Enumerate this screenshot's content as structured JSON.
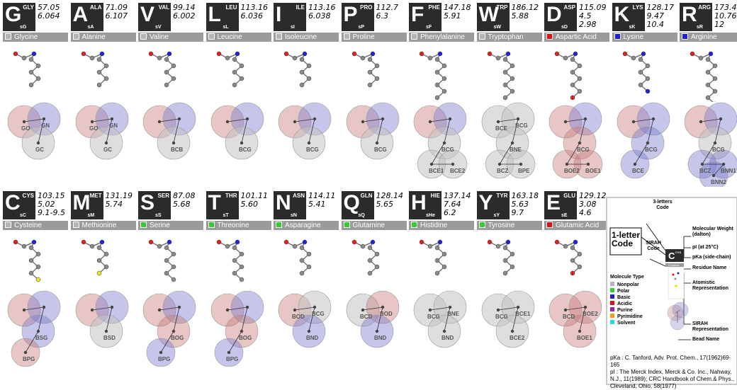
{
  "colors": {
    "Nonpolar": "#b4b4b4",
    "Polar": "#33cc33",
    "Basic": "#1f1fd6",
    "Acidic": "#dd1111",
    "Purine": "#9922aa",
    "Pyrimidine": "#e8a020",
    "Solvent": "#22dddd"
  },
  "residues": [
    {
      "letter": "G",
      "code3": "GLY",
      "sirah": "sG",
      "weight": "57.05",
      "pI": "6.064",
      "pKa": "",
      "name": "Glycine",
      "type": "Nonpolar",
      "beads": [
        {
          "label": "GO",
          "color": "red"
        },
        {
          "label": "GN",
          "color": "blue"
        },
        {
          "label": "GC",
          "color": "gray"
        }
      ]
    },
    {
      "letter": "A",
      "code3": "ALA",
      "sirah": "sA",
      "weight": "71.09",
      "pI": "6.107",
      "pKa": "",
      "name": "Alanine",
      "type": "Nonpolar",
      "beads": [
        {
          "label": "GO",
          "color": "red"
        },
        {
          "label": "GN",
          "color": "blue"
        },
        {
          "label": "GC",
          "color": "gray"
        }
      ]
    },
    {
      "letter": "V",
      "code3": "VAL",
      "sirah": "sV",
      "weight": "99.14",
      "pI": "6.002",
      "pKa": "",
      "name": "Valine",
      "type": "Nonpolar",
      "beads": [
        {
          "label": "",
          "color": "red"
        },
        {
          "label": "",
          "color": "blue"
        },
        {
          "label": "BCB",
          "color": "gray"
        }
      ]
    },
    {
      "letter": "L",
      "code3": "LEU",
      "sirah": "sL",
      "weight": "113.16",
      "pI": "6.036",
      "pKa": "",
      "name": "Leucine",
      "type": "Nonpolar",
      "beads": [
        {
          "label": "",
          "color": "red"
        },
        {
          "label": "",
          "color": "blue"
        },
        {
          "label": "BCG",
          "color": "gray"
        }
      ]
    },
    {
      "letter": "I",
      "code3": "ILE",
      "sirah": "sI",
      "weight": "113.16",
      "pI": "6.038",
      "pKa": "",
      "name": "Isoleucine",
      "type": "Nonpolar",
      "beads": [
        {
          "label": "",
          "color": "red"
        },
        {
          "label": "",
          "color": "blue"
        },
        {
          "label": "BCG",
          "color": "gray"
        }
      ]
    },
    {
      "letter": "P",
      "code3": "PRO",
      "sirah": "sP",
      "weight": "112.7",
      "pI": "6.3",
      "pKa": "",
      "name": "Proline",
      "type": "Nonpolar",
      "beads": [
        {
          "label": "",
          "color": "red"
        },
        {
          "label": "",
          "color": "blue"
        },
        {
          "label": "BCG",
          "color": "gray"
        }
      ]
    },
    {
      "letter": "F",
      "code3": "PHE",
      "sirah": "sF",
      "weight": "147.18",
      "pI": "5.91",
      "pKa": "",
      "name": "Phenylalanine",
      "type": "Nonpolar",
      "beads": [
        {
          "label": "",
          "color": "red"
        },
        {
          "label": "",
          "color": "blue"
        },
        {
          "label": "BCG",
          "color": "gray"
        },
        {
          "label": "BCE1",
          "color": "gray"
        },
        {
          "label": "BCE2",
          "color": "gray"
        }
      ]
    },
    {
      "letter": "W",
      "code3": "TRP",
      "sirah": "sW",
      "weight": "186.12",
      "pI": "5.88",
      "pKa": "",
      "name": "Tryptophan",
      "type": "Nonpolar",
      "beads": [
        {
          "label": "BCE",
          "color": "gray"
        },
        {
          "label": "BCG",
          "color": "gray"
        },
        {
          "label": "BNE",
          "color": "gray"
        },
        {
          "label": "BCZ",
          "color": "gray"
        },
        {
          "label": "BPE",
          "color": "gray"
        }
      ]
    },
    {
      "letter": "D",
      "code3": "ASP",
      "sirah": "sD",
      "weight": "115.09",
      "pI": "4.5",
      "pKa": "2.98",
      "name": "Aspartic Acid",
      "type": "Acidic",
      "beads": [
        {
          "label": "",
          "color": "red"
        },
        {
          "label": "",
          "color": "blue"
        },
        {
          "label": "BCG",
          "color": "red"
        },
        {
          "label": "BOE2",
          "color": "red"
        },
        {
          "label": "BOE1",
          "color": "red"
        }
      ]
    },
    {
      "letter": "K",
      "code3": "LYS",
      "sirah": "sK",
      "weight": "128.17",
      "pI": "9.47",
      "pKa": "10.4",
      "name": "Lysine",
      "type": "Basic",
      "beads": [
        {
          "label": "",
          "color": "red"
        },
        {
          "label": "",
          "color": "blue"
        },
        {
          "label": "BCG",
          "color": "blue"
        },
        {
          "label": "BCE",
          "color": "blue"
        }
      ]
    },
    {
      "letter": "R",
      "code3": "ARG",
      "sirah": "sR",
      "weight": "173.4",
      "pI": "10.76",
      "pKa": "12",
      "name": "Arginine",
      "type": "Basic",
      "beads": [
        {
          "label": "",
          "color": "red"
        },
        {
          "label": "",
          "color": "blue"
        },
        {
          "label": "BCG",
          "color": "gray"
        },
        {
          "label": "BCZ",
          "color": "blue"
        },
        {
          "label": "BNN1",
          "color": "blue"
        },
        {
          "label": "BNN2",
          "color": "blue"
        }
      ]
    },
    {
      "letter": "C",
      "code3": "CYS",
      "sirah": "sC",
      "weight": "103.15",
      "pI": "5.02",
      "pKa": "9.1-9.5",
      "name": "Cysteine",
      "type": "Nonpolar",
      "beads": [
        {
          "label": "",
          "color": "red"
        },
        {
          "label": "",
          "color": "blue"
        },
        {
          "label": "BSG",
          "color": "blue"
        },
        {
          "label": "BPG",
          "color": "red"
        }
      ]
    },
    {
      "letter": "M",
      "code3": "MET",
      "sirah": "sM",
      "weight": "131.19",
      "pI": "5.74",
      "pKa": "",
      "name": "Methionine",
      "type": "Nonpolar",
      "beads": [
        {
          "label": "",
          "color": "red"
        },
        {
          "label": "",
          "color": "blue"
        },
        {
          "label": "BSD",
          "color": "gray"
        }
      ]
    },
    {
      "letter": "S",
      "code3": "SER",
      "sirah": "sS",
      "weight": "87.08",
      "pI": "5.68",
      "pKa": "",
      "name": "Serine",
      "type": "Polar",
      "beads": [
        {
          "label": "",
          "color": "red"
        },
        {
          "label": "",
          "color": "blue"
        },
        {
          "label": "BOG",
          "color": "red"
        },
        {
          "label": "BPG",
          "color": "blue"
        }
      ]
    },
    {
      "letter": "T",
      "code3": "THR",
      "sirah": "sT",
      "weight": "101.11",
      "pI": "5.60",
      "pKa": "",
      "name": "Threonine",
      "type": "Polar",
      "beads": [
        {
          "label": "",
          "color": "red"
        },
        {
          "label": "",
          "color": "blue"
        },
        {
          "label": "BOG",
          "color": "red"
        },
        {
          "label": "BPG",
          "color": "blue"
        }
      ]
    },
    {
      "letter": "N",
      "code3": "ASN",
      "sirah": "sN",
      "weight": "114.11",
      "pI": "5.41",
      "pKa": "",
      "name": "Asparagine",
      "type": "Polar",
      "beads": [
        {
          "label": "BOD",
          "color": "red"
        },
        {
          "label": "BCG",
          "color": "gray"
        },
        {
          "label": "BND",
          "color": "blue"
        }
      ]
    },
    {
      "letter": "Q",
      "code3": "GLN",
      "sirah": "sQ",
      "weight": "128.14",
      "pI": "5.65",
      "pKa": "",
      "name": "Glutamine",
      "type": "Polar",
      "beads": [
        {
          "label": "BCD",
          "color": "gray"
        },
        {
          "label": "BOD",
          "color": "red"
        },
        {
          "label": "BND",
          "color": "blue"
        }
      ]
    },
    {
      "letter": "H",
      "code3": "HIE",
      "sirah": "sHe",
      "weight": "137.14",
      "pI": "7.64",
      "pKa": "6.2",
      "name": "Histidine",
      "type": "Polar",
      "beads": [
        {
          "label": "BCG",
          "color": "gray"
        },
        {
          "label": "BNE",
          "color": "gray"
        },
        {
          "label": "BND",
          "color": "gray"
        }
      ]
    },
    {
      "letter": "Y",
      "code3": "TYR",
      "sirah": "sY",
      "weight": "163.18",
      "pI": "5.63",
      "pKa": "9.7",
      "name": "Tyrosine",
      "type": "Polar",
      "beads": [
        {
          "label": "BCG",
          "color": "gray"
        },
        {
          "label": "BCE1",
          "color": "gray"
        },
        {
          "label": "BCE2",
          "color": "gray"
        }
      ]
    },
    {
      "letter": "E",
      "code3": "GLU",
      "sirah": "sE",
      "weight": "129.12",
      "pI": "3.08",
      "pKa": "4.6",
      "name": "Glutamic Acid",
      "type": "Acidic",
      "beads": [
        {
          "label": "BCD",
          "color": "red"
        },
        {
          "label": "BOE2",
          "color": "red"
        },
        {
          "label": "BOE1",
          "color": "red"
        }
      ]
    }
  ],
  "legend": {
    "example_letter": "C",
    "example_code3": "CYS",
    "example_sirah": "sC",
    "example_weight": "103.15",
    "example_pI": "5.02",
    "example_pKa": "9.1-9.5",
    "example_name": "Cysteine",
    "three_letters_code": "3-letters Code",
    "one_letter_code": "1-letter Code",
    "sirah_code": "SIRAH Code",
    "molecular_weight": "Molecular Weight (dalton)",
    "pi_label": "pI (at 25°C)",
    "pka_label": "pKa (side-chain)",
    "residue_name": "Residue Name",
    "atomistic": "Atomistic Representation",
    "sirah_rep": "SIRAH Representation",
    "bead_name": "Bead Name",
    "molecule_type": "Molecule Type",
    "types": [
      "Nonpolar",
      "Polar",
      "Basic",
      "Acidic",
      "Purine",
      "Pyrimidine",
      "Solvent"
    ],
    "ref1": "pKa : C. Tanford, Adv. Prot. Chem., 17(1962)69-165",
    "ref2": "pI : The Merck Index, Merck & Co. Inc., Nahway, N.J., 11(1989); CRC Handbook of Chem.& Phys., Cleveland, Ohio, 58(1977)"
  }
}
